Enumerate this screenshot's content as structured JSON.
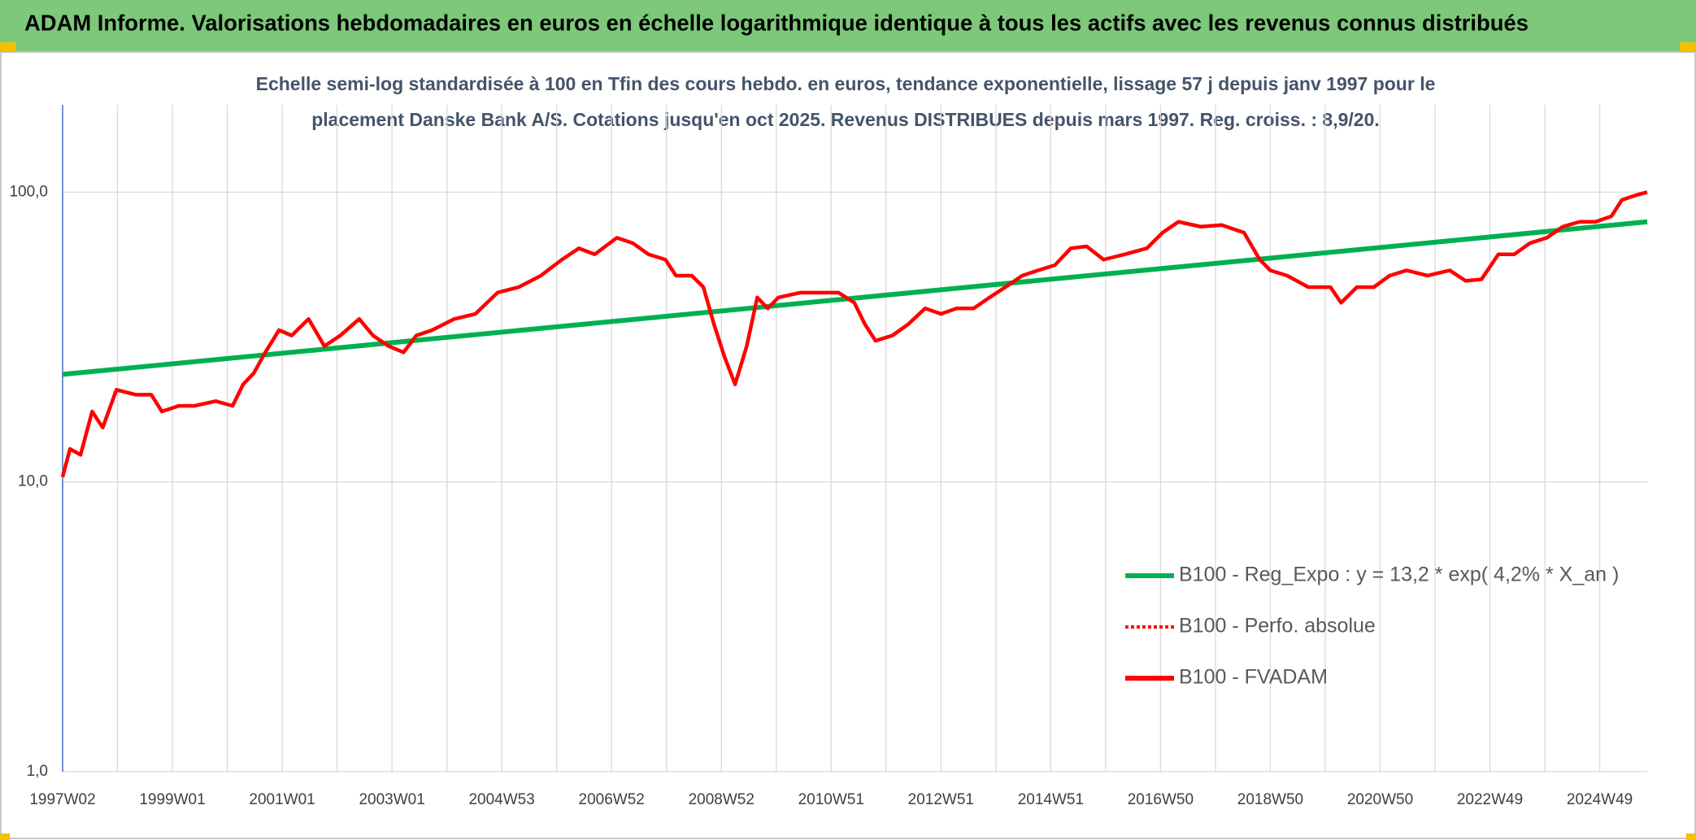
{
  "chart_data": {
    "type": "line",
    "title": "ADAM Informe. Valorisations hebdomadaires en euros en échelle logarithmique identique à tous les actifs avec les revenus connus distribués",
    "subtitle": [
      "Echelle semi-log standardisée à 100 en Tfin des cours hebdo. en euros, tendance exponentielle, lissage 57 j depuis janv 1997 pour le",
      "placement Danske Bank A/S. Cotations jusqu'en oct 2025. Revenus DISTRIBUES depuis mars 1997. Reg. croiss. : 8,9/20."
    ],
    "log_y": true,
    "grid": true,
    "legend": "lower right",
    "xlim": [
      0,
      1501
    ],
    "xticks": [
      {
        "value": 0,
        "label": "1997W02"
      },
      {
        "value": 104,
        "label": "1999W01"
      },
      {
        "value": 208,
        "label": "2001W01"
      },
      {
        "value": 312,
        "label": "2003W01"
      },
      {
        "value": 416,
        "label": "2004W53"
      },
      {
        "value": 520,
        "label": "2006W52"
      },
      {
        "value": 624,
        "label": "2008W52"
      },
      {
        "value": 728,
        "label": "2010W51"
      },
      {
        "value": 832,
        "label": "2012W51"
      },
      {
        "value": 936,
        "label": "2014W51"
      },
      {
        "value": 1040,
        "label": "2016W50"
      },
      {
        "value": 1144,
        "label": "2018W50"
      },
      {
        "value": 1248,
        "label": "2020W50"
      },
      {
        "value": 1352,
        "label": "2022W49"
      },
      {
        "value": 1456,
        "label": "2024W49"
      }
    ],
    "ylim": [
      1,
      200
    ],
    "yticks": [
      {
        "value": 1,
        "label": "1,0"
      },
      {
        "value": 10,
        "label": "10,0"
      },
      {
        "value": 100,
        "label": "100,0"
      }
    ],
    "series": [
      {
        "name": "B100 - Reg_Expo : y = 13,2 * exp( 4,2% *  X_an )",
        "color": "#00b050",
        "style": "solid",
        "x": [
          0,
          1501
        ],
        "values": [
          23.5,
          79
        ]
      },
      {
        "name": "B100 - Perfo. absolue",
        "color": "#ff0000",
        "style": "dotted"
      },
      {
        "name": "B100 - FVADAM",
        "color": "#ff0000",
        "style": "solid",
        "x": [
          0,
          7,
          17,
          28,
          38,
          51,
          69,
          84,
          94,
          110,
          125,
          145,
          161,
          171,
          181,
          192,
          205,
          217,
          233,
          248,
          263,
          281,
          294,
          309,
          323,
          335,
          350,
          371,
          391,
          412,
          432,
          453,
          473,
          489,
          504,
          525,
          540,
          555,
          571,
          581,
          596,
          607,
          617,
          627,
          637,
          648,
          658,
          668,
          678,
          699,
          719,
          735,
          750,
          760,
          770,
          786,
          801,
          817,
          832,
          847,
          863,
          878,
          893,
          909,
          924,
          940,
          955,
          970,
          986,
          1006,
          1027,
          1042,
          1057,
          1078,
          1098,
          1119,
          1134,
          1144,
          1160,
          1180,
          1201,
          1211,
          1226,
          1242,
          1257,
          1273,
          1293,
          1314,
          1329,
          1344,
          1360,
          1375,
          1390,
          1406,
          1421,
          1437,
          1452,
          1467,
          1477,
          1492,
          1501
        ],
        "values": [
          10.4,
          13,
          12.4,
          17.5,
          15.4,
          20.8,
          20,
          20,
          17.5,
          18.3,
          18.3,
          19,
          18.3,
          21.7,
          23.7,
          28,
          33.4,
          32,
          36.5,
          29.4,
          32,
          36.5,
          32,
          29.4,
          28,
          32,
          33.4,
          36.5,
          38,
          45,
          47,
          51.5,
          58.5,
          64,
          61,
          69.6,
          66.7,
          61,
          58.5,
          51.5,
          51.5,
          47,
          35,
          27,
          21.7,
          29.4,
          43.3,
          39.7,
          43.3,
          45,
          45,
          45,
          41.5,
          35,
          30.7,
          32,
          35,
          39.7,
          38,
          39.7,
          39.7,
          43.3,
          47,
          51.5,
          53.7,
          56,
          64,
          65,
          58.5,
          61,
          64,
          72.5,
          79,
          76,
          77,
          72.5,
          58.5,
          53.7,
          51.5,
          47,
          47,
          41.5,
          47,
          47,
          51.5,
          53.7,
          51.5,
          53.7,
          49.4,
          50,
          61,
          61,
          66.7,
          69.6,
          76,
          79,
          79,
          82.5,
          94,
          98,
          100
        ]
      }
    ]
  }
}
